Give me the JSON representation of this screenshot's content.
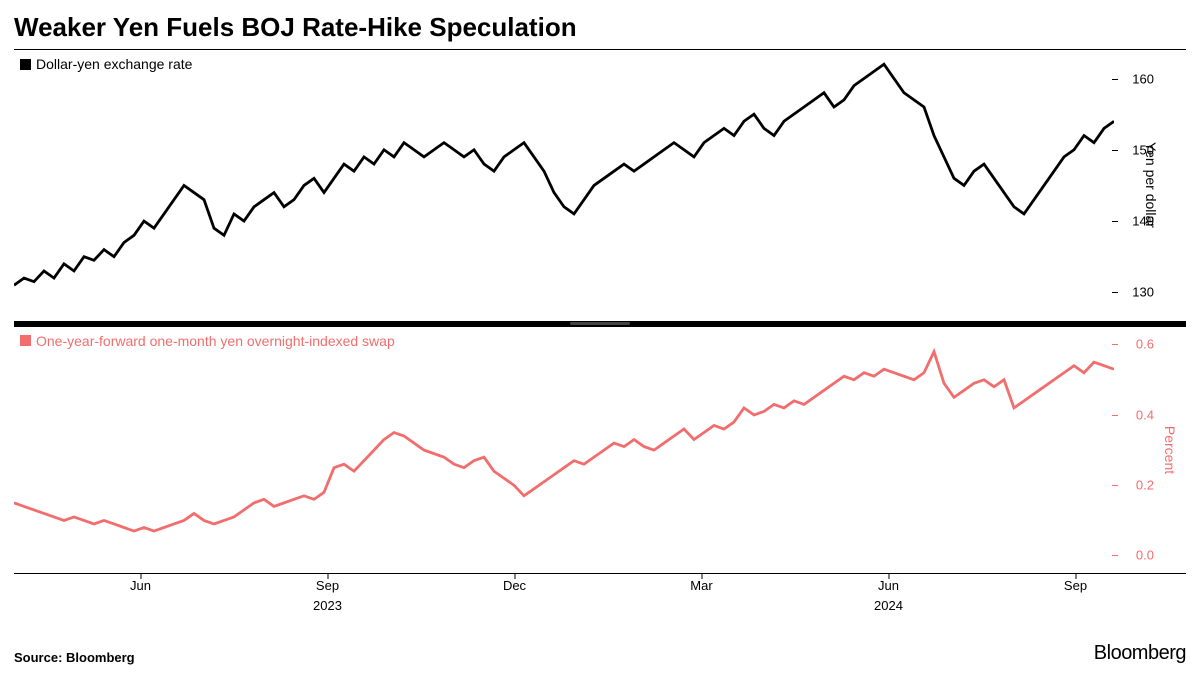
{
  "title": "Weaker Yen Fuels BOJ Rate-Hike Speculation",
  "source": "Source: Bloomberg",
  "brand": "Bloomberg",
  "colors": {
    "series1": "#000000",
    "series2": "#f26d6d",
    "background": "#ffffff",
    "axis": "#000000"
  },
  "x_axis": {
    "months": [
      {
        "label": "Jun",
        "pos": 0.115
      },
      {
        "label": "Sep",
        "pos": 0.285
      },
      {
        "label": "Dec",
        "pos": 0.455
      },
      {
        "label": "Mar",
        "pos": 0.625
      },
      {
        "label": "Jun",
        "pos": 0.795
      },
      {
        "label": "Sep",
        "pos": 0.965
      }
    ],
    "years": [
      {
        "label": "2023",
        "pos": 0.285
      },
      {
        "label": "2024",
        "pos": 0.795
      }
    ]
  },
  "panel1": {
    "legend": "Dollar-yen exchange rate",
    "y_label": "Yen per dollar",
    "ylim": [
      126,
      164
    ],
    "yticks": [
      130,
      140,
      150,
      160
    ],
    "line_color": "#000000",
    "line_width": 1.4,
    "data": [
      131,
      132,
      131.5,
      133,
      132,
      134,
      133,
      135,
      134.5,
      136,
      135,
      137,
      138,
      140,
      139,
      141,
      143,
      145,
      144,
      143,
      139,
      138,
      141,
      140,
      142,
      143,
      144,
      142,
      143,
      145,
      146,
      144,
      146,
      148,
      147,
      149,
      148,
      150,
      149,
      151,
      150,
      149,
      150,
      151,
      150,
      149,
      150,
      148,
      147,
      149,
      150,
      151,
      149,
      147,
      144,
      142,
      141,
      143,
      145,
      146,
      147,
      148,
      147,
      148,
      149,
      150,
      151,
      150,
      149,
      151,
      152,
      153,
      152,
      154,
      155,
      153,
      152,
      154,
      155,
      156,
      157,
      158,
      156,
      157,
      159,
      160,
      161,
      162,
      160,
      158,
      157,
      156,
      152,
      149,
      146,
      145,
      147,
      148,
      146,
      144,
      142,
      141,
      143,
      145,
      147,
      149,
      150,
      152,
      151,
      153,
      154
    ]
  },
  "panel2": {
    "legend": "One-year-forward one-month yen overnight-indexed swap",
    "y_label": "Percent",
    "ylim": [
      -0.05,
      0.65
    ],
    "yticks": [
      0.0,
      0.2,
      0.4,
      0.6
    ],
    "ytick_labels": [
      "0.0",
      "0.2",
      "0.4",
      "0.6"
    ],
    "line_color": "#f26d6d",
    "line_width": 1.4,
    "data": [
      0.15,
      0.14,
      0.13,
      0.12,
      0.11,
      0.1,
      0.11,
      0.1,
      0.09,
      0.1,
      0.09,
      0.08,
      0.07,
      0.08,
      0.07,
      0.08,
      0.09,
      0.1,
      0.12,
      0.1,
      0.09,
      0.1,
      0.11,
      0.13,
      0.15,
      0.16,
      0.14,
      0.15,
      0.16,
      0.17,
      0.16,
      0.18,
      0.25,
      0.26,
      0.24,
      0.27,
      0.3,
      0.33,
      0.35,
      0.34,
      0.32,
      0.3,
      0.29,
      0.28,
      0.26,
      0.25,
      0.27,
      0.28,
      0.24,
      0.22,
      0.2,
      0.17,
      0.19,
      0.21,
      0.23,
      0.25,
      0.27,
      0.26,
      0.28,
      0.3,
      0.32,
      0.31,
      0.33,
      0.31,
      0.3,
      0.32,
      0.34,
      0.36,
      0.33,
      0.35,
      0.37,
      0.36,
      0.38,
      0.42,
      0.4,
      0.41,
      0.43,
      0.42,
      0.44,
      0.43,
      0.45,
      0.47,
      0.49,
      0.51,
      0.5,
      0.52,
      0.51,
      0.53,
      0.52,
      0.51,
      0.5,
      0.52,
      0.58,
      0.49,
      0.45,
      0.47,
      0.49,
      0.5,
      0.48,
      0.5,
      0.42,
      0.44,
      0.46,
      0.48,
      0.5,
      0.52,
      0.54,
      0.52,
      0.55,
      0.54,
      0.53
    ]
  }
}
